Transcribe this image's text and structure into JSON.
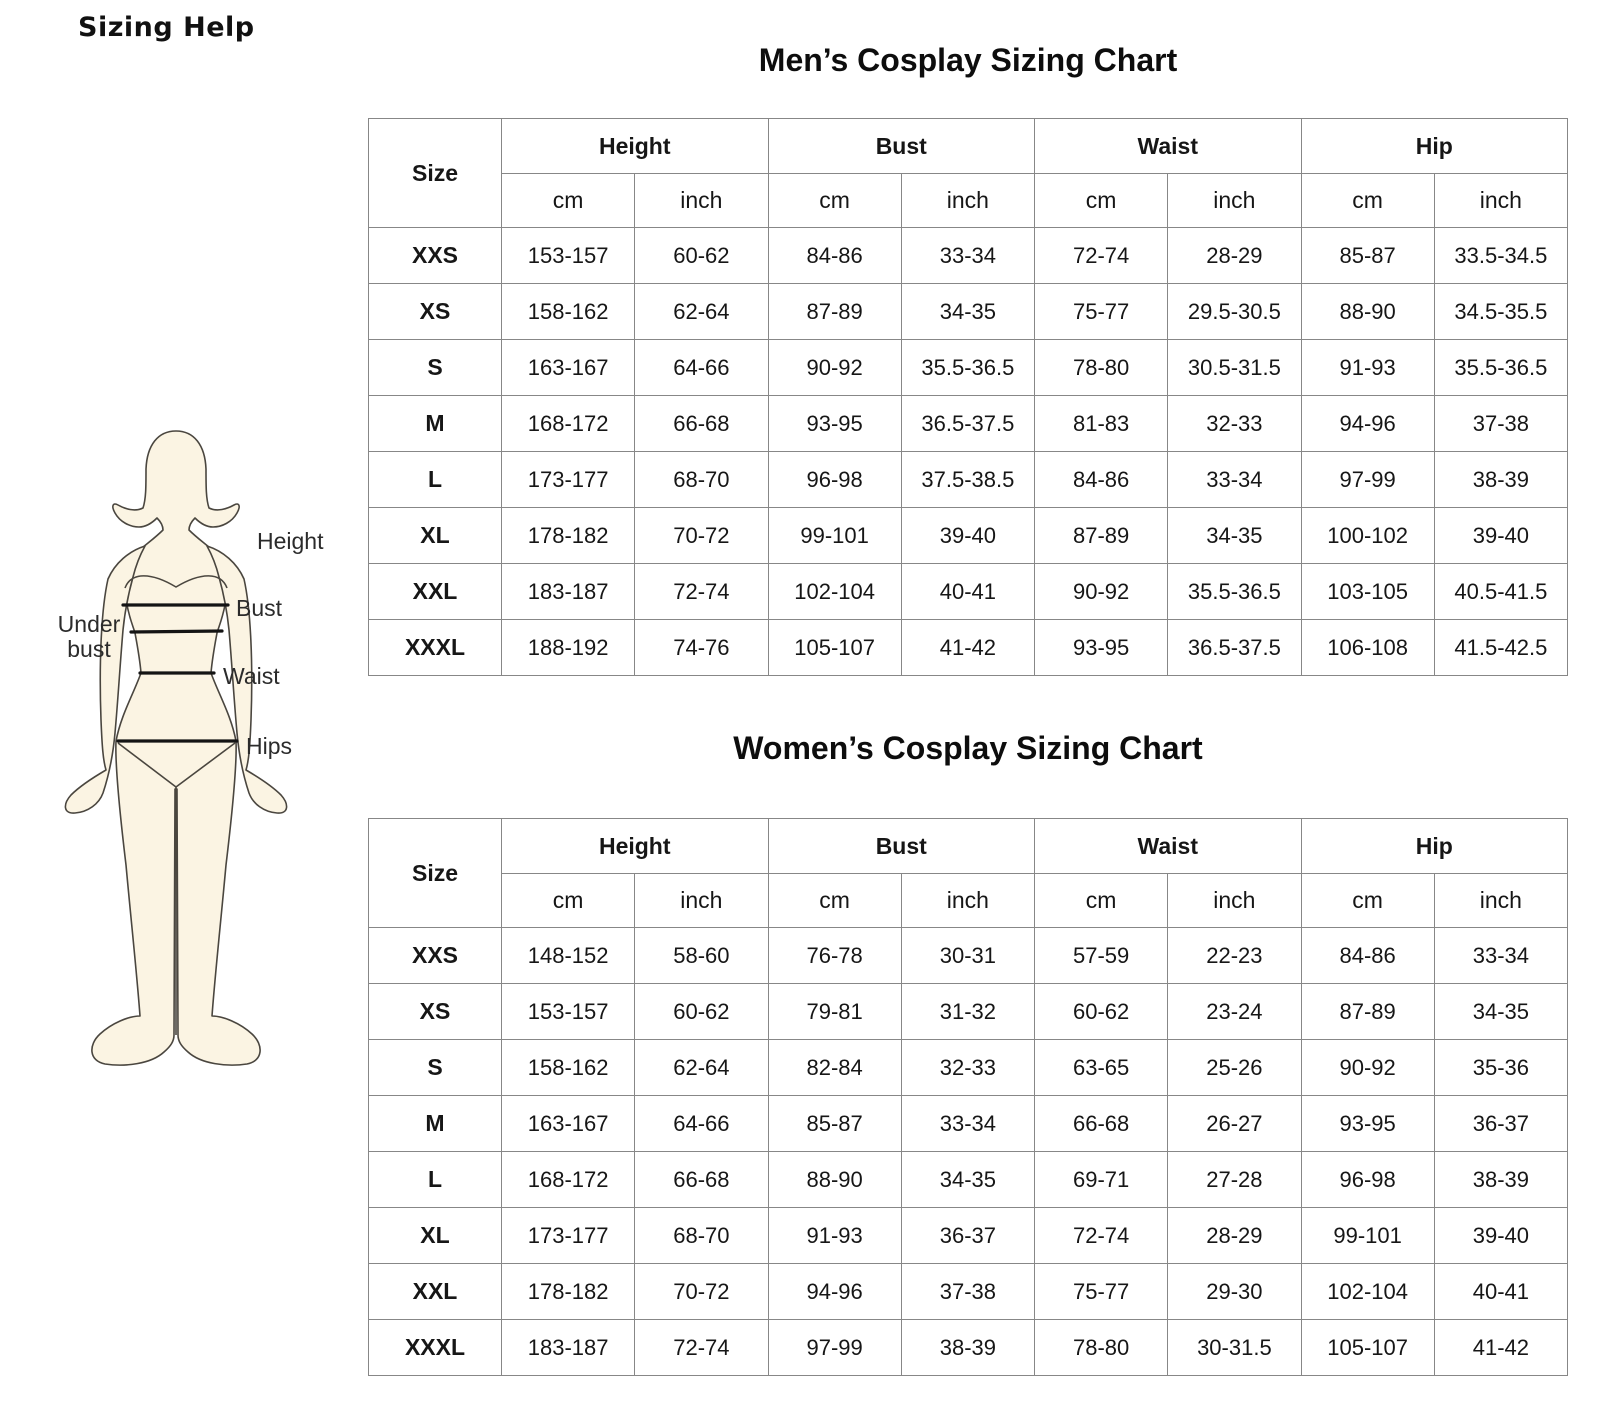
{
  "page": {
    "heading": "Sizing Help"
  },
  "figure": {
    "labels": {
      "height": "Height",
      "bust": "Bust",
      "under_bust": "Under bust",
      "waist": "Waist",
      "hips": "Hips"
    },
    "colors": {
      "skin_fill": "#fbf4e3",
      "outline": "#4a463f",
      "measure_line": "#141414"
    }
  },
  "men_chart": {
    "title": "Men’s Cosplay Sizing Chart",
    "columns": {
      "size": "Size",
      "groups": [
        "Height",
        "Bust",
        "Waist",
        "Hip"
      ],
      "units": [
        "cm",
        "inch"
      ]
    },
    "rows": [
      {
        "size": "XXS",
        "values": [
          "153-157",
          "60-62",
          "84-86",
          "33-34",
          "72-74",
          "28-29",
          "85-87",
          "33.5-34.5"
        ]
      },
      {
        "size": "XS",
        "values": [
          "158-162",
          "62-64",
          "87-89",
          "34-35",
          "75-77",
          "29.5-30.5",
          "88-90",
          "34.5-35.5"
        ]
      },
      {
        "size": "S",
        "values": [
          "163-167",
          "64-66",
          "90-92",
          "35.5-36.5",
          "78-80",
          "30.5-31.5",
          "91-93",
          "35.5-36.5"
        ]
      },
      {
        "size": "M",
        "values": [
          "168-172",
          "66-68",
          "93-95",
          "36.5-37.5",
          "81-83",
          "32-33",
          "94-96",
          "37-38"
        ]
      },
      {
        "size": "L",
        "values": [
          "173-177",
          "68-70",
          "96-98",
          "37.5-38.5",
          "84-86",
          "33-34",
          "97-99",
          "38-39"
        ]
      },
      {
        "size": "XL",
        "values": [
          "178-182",
          "70-72",
          "99-101",
          "39-40",
          "87-89",
          "34-35",
          "100-102",
          "39-40"
        ]
      },
      {
        "size": "XXL",
        "values": [
          "183-187",
          "72-74",
          "102-104",
          "40-41",
          "90-92",
          "35.5-36.5",
          "103-105",
          "40.5-41.5"
        ]
      },
      {
        "size": "XXXL",
        "values": [
          "188-192",
          "74-76",
          "105-107",
          "41-42",
          "93-95",
          "36.5-37.5",
          "106-108",
          "41.5-42.5"
        ]
      }
    ]
  },
  "women_chart": {
    "title": "Women’s  Cosplay Sizing Chart",
    "columns": {
      "size": "Size",
      "groups": [
        "Height",
        "Bust",
        "Waist",
        "Hip"
      ],
      "units": [
        "cm",
        "inch"
      ]
    },
    "rows": [
      {
        "size": "XXS",
        "values": [
          "148-152",
          "58-60",
          "76-78",
          "30-31",
          "57-59",
          "22-23",
          "84-86",
          "33-34"
        ]
      },
      {
        "size": "XS",
        "values": [
          "153-157",
          "60-62",
          "79-81",
          "31-32",
          "60-62",
          "23-24",
          "87-89",
          "34-35"
        ]
      },
      {
        "size": "S",
        "values": [
          "158-162",
          "62-64",
          "82-84",
          "32-33",
          "63-65",
          "25-26",
          "90-92",
          "35-36"
        ]
      },
      {
        "size": "M",
        "values": [
          "163-167",
          "64-66",
          "85-87",
          "33-34",
          "66-68",
          "26-27",
          "93-95",
          "36-37"
        ]
      },
      {
        "size": "L",
        "values": [
          "168-172",
          "66-68",
          "88-90",
          "34-35",
          "69-71",
          "27-28",
          "96-98",
          "38-39"
        ]
      },
      {
        "size": "XL",
        "values": [
          "173-177",
          "68-70",
          "91-93",
          "36-37",
          "72-74",
          "28-29",
          "99-101",
          "39-40"
        ]
      },
      {
        "size": "XXL",
        "values": [
          "178-182",
          "70-72",
          "94-96",
          "37-38",
          "75-77",
          "29-30",
          "102-104",
          "40-41"
        ]
      },
      {
        "size": "XXXL",
        "values": [
          "183-187",
          "72-74",
          "97-99",
          "38-39",
          "78-80",
          "30-31.5",
          "105-107",
          "41-42"
        ]
      }
    ]
  }
}
